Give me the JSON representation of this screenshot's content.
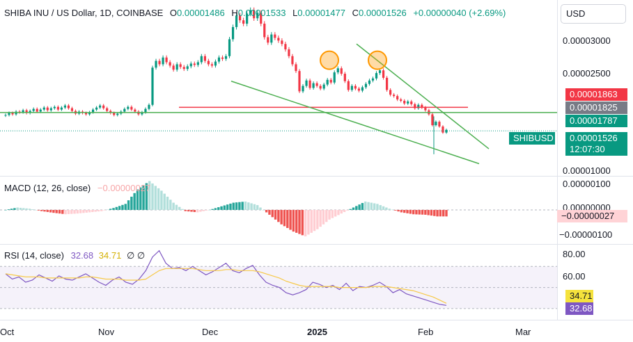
{
  "header": {
    "symbol": "SHIBA INU / US Dollar, 1D, COINBASE",
    "open_label": "O",
    "open_value": "0.00001486",
    "high_label": "H",
    "high_value": "0.00001533",
    "low_label": "L",
    "low_value": "0.00001477",
    "close_label": "C",
    "close_value": "0.00001526",
    "change": "+0.00000040 (+2.69%)"
  },
  "currency_button": "USD",
  "price_axis": {
    "ticks": [
      {
        "label": "0.00003000",
        "value": 3e-05
      },
      {
        "label": "0.00002500",
        "value": 2.5e-05
      },
      {
        "label": "0.00001000",
        "value": 1e-05
      }
    ]
  },
  "price_tags": [
    {
      "label": "0.00001863",
      "value": 1.863e-05,
      "color": "#f23645"
    },
    {
      "label": "0.00001825",
      "value": 1.825e-05,
      "color": "#787b86"
    },
    {
      "label": "0.00001787",
      "value": 1.787e-05,
      "color": "#089981"
    }
  ],
  "symbol_tag": {
    "label": "SHIBUSD",
    "price": "0.00001526",
    "countdown": "12:07:30",
    "color": "#089981"
  },
  "macd": {
    "label": "MACD (12, 26, close)",
    "value": "−0.00000027",
    "axis": [
      {
        "label": "0.00000100",
        "value": 1e-06
      },
      {
        "label": "0.00000000",
        "value": 0
      },
      {
        "label": "−0.00000100",
        "value": -1e-06
      }
    ],
    "tag": "−0.00000027"
  },
  "rsi": {
    "label": "RSI (14, close)",
    "value": "32.68",
    "ma_value": "34.71",
    "flags": "∅ ∅",
    "axis": [
      {
        "label": "80.00",
        "value": 80
      },
      {
        "label": "60.00",
        "value": 60
      }
    ],
    "ma_tag": {
      "label": "34.71",
      "value": 34.71,
      "color": "#f0d84a"
    },
    "rsi_tag": {
      "label": "32.68",
      "value": 32.68,
      "color": "#7e57c2"
    }
  },
  "time_axis": {
    "labels": [
      "Oct",
      "Nov",
      "Dec",
      "2025",
      "Feb",
      "Mar"
    ]
  },
  "colors": {
    "up": "#089981",
    "down": "#f23645",
    "macd_up": "#26a69a",
    "macd_up_light": "#b2dfdb",
    "macd_down": "#ef5350",
    "macd_down_light": "#ffcdd2",
    "rsi": "#7e57c2",
    "rsi_ma": "#f7c948",
    "trend": "#4caf50",
    "resistance": "#f23645"
  },
  "chart_data": [
    {
      "type": "candlestick",
      "title": "SHIBA INU / US Dollar, 1D, COINBASE",
      "x_range": [
        "Oct",
        "Mar"
      ],
      "ylim": [
        8.5e-06,
        3.45e-05
      ],
      "close_series_approx": [
        1.75e-05,
        1.78e-05,
        1.76e-05,
        1.8e-05,
        1.79e-05,
        1.82e-05,
        1.78e-05,
        1.81e-05,
        1.84e-05,
        1.8e-05,
        1.83e-05,
        1.86e-05,
        1.82e-05,
        1.85e-05,
        1.87e-05,
        1.83e-05,
        1.86e-05,
        1.89e-05,
        1.85e-05,
        1.81e-05,
        1.77e-05,
        1.8e-05,
        1.78e-05,
        1.76e-05,
        1.79e-05,
        1.83e-05,
        1.86e-05,
        1.89e-05,
        1.85e-05,
        1.81e-05,
        1.78e-05,
        1.75e-05,
        1.77e-05,
        1.8e-05,
        1.84e-05,
        1.87e-05,
        1.83e-05,
        1.8e-05,
        1.76e-05,
        1.79e-05,
        1.84e-05,
        1.9e-05,
        2.45e-05,
        2.55e-05,
        2.5e-05,
        2.6e-05,
        2.53e-05,
        2.48e-05,
        2.42e-05,
        2.5e-05,
        2.46e-05,
        2.43e-05,
        2.47e-05,
        2.51e-05,
        2.49e-05,
        2.53e-05,
        2.62e-05,
        2.55e-05,
        2.5e-05,
        2.48e-05,
        2.54e-05,
        2.6e-05,
        2.58e-05,
        2.62e-05,
        2.87e-05,
        3.05e-05,
        3.22e-05,
        3.15e-05,
        3.1e-05,
        3.25e-05,
        3.3e-05,
        3.18e-05,
        3.26e-05,
        3.1e-05,
        2.9e-05,
        2.82e-05,
        2.94e-05,
        2.89e-05,
        2.85e-05,
        2.8e-05,
        2.72e-05,
        2.62e-05,
        2.5e-05,
        2.4e-05,
        2.1e-05,
        2.18e-05,
        2.26e-05,
        2.15e-05,
        2.22e-05,
        2.18e-05,
        2.14e-05,
        2.2e-05,
        2.27e-05,
        2.23e-05,
        2.38e-05,
        2.44e-05,
        2.36e-05,
        2.25e-05,
        2.12e-05,
        2.18e-05,
        2.14e-05,
        2.11e-05,
        2.16e-05,
        2.21e-05,
        2.26e-05,
        2.29e-05,
        2.37e-05,
        2.41e-05,
        2.3e-05,
        2.12e-05,
        2.05e-05,
        2.03e-05,
        1.98e-05,
        1.96e-05,
        1.92e-05,
        1.95e-05,
        1.91e-05,
        1.85e-05,
        1.9e-05,
        1.86e-05,
        1.82e-05,
        1.76e-05,
        1.6e-05,
        1.65e-05,
        1.58e-05,
        1.49e-05,
        1.53e-05
      ]
    },
    {
      "type": "bar",
      "title": "MACD (12, 26, close)",
      "values_approx": [
        0,
        1e-07,
        5e-08,
        -5e-08,
        -1.2e-07,
        -1.8e-07,
        -1.5e-07,
        -1e-07,
        -5e-08,
        8e-08,
        2.5e-07,
        8.5e-07,
        1.2e-06,
        8e-07,
        3e-07,
        -5e-08,
        -1e-07,
        0,
        1.5e-07,
        3e-07,
        3.5e-07,
        2e-07,
        -2e-07,
        -6e-07,
        -9e-07,
        -1.1e-06,
        -8e-07,
        -4e-07,
        -1.5e-07,
        1e-07,
        3.5e-07,
        2.5e-07,
        5e-08,
        -1e-07,
        -1.8e-07,
        -2e-07,
        -2.7e-07
      ]
    },
    {
      "type": "line",
      "title": "RSI (14, close)",
      "ylim": [
        20,
        90
      ],
      "series": [
        {
          "name": "RSI",
          "values_approx": [
            63,
            58,
            60,
            55,
            57,
            62,
            59,
            56,
            61,
            58,
            57,
            60,
            63,
            59,
            55,
            52,
            57,
            60,
            55,
            53,
            58,
            66,
            79,
            85,
            73,
            68,
            69,
            66,
            70,
            66,
            62,
            65,
            69,
            73,
            66,
            64,
            68,
            71,
            62,
            55,
            52,
            50,
            45,
            43,
            45,
            48,
            55,
            53,
            50,
            52,
            48,
            54,
            47,
            51,
            50,
            52,
            55,
            51,
            45,
            48,
            44,
            42,
            40,
            38,
            36,
            34,
            33
          ]
        },
        {
          "name": "RSI MA",
          "values_approx": [
            63,
            62,
            61,
            60,
            60,
            60,
            59,
            59,
            59,
            59,
            59,
            59,
            60,
            60,
            59,
            58,
            58,
            58,
            57,
            57,
            57,
            58,
            62,
            66,
            68,
            68,
            68,
            68,
            68,
            67,
            66,
            66,
            66,
            67,
            67,
            66,
            66,
            66,
            65,
            63,
            61,
            59,
            56,
            54,
            52,
            51,
            51,
            51,
            51,
            51,
            50,
            50,
            50,
            50,
            50,
            51,
            51,
            51,
            50,
            49,
            48,
            47,
            45,
            43,
            41,
            38,
            35
          ]
        }
      ]
    }
  ]
}
